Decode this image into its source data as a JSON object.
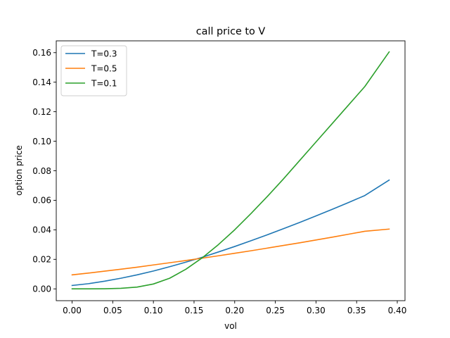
{
  "chart_data": {
    "type": "line",
    "title": "call price to V",
    "xlabel": "vol",
    "ylabel": "option price",
    "xlim": [
      -0.0195,
      0.4095
    ],
    "ylim": [
      -0.008,
      0.168
    ],
    "xticks": [
      0.0,
      0.05,
      0.1,
      0.15,
      0.2,
      0.25,
      0.3,
      0.35,
      0.4
    ],
    "xtick_labels": [
      "0.00",
      "0.05",
      "0.10",
      "0.15",
      "0.20",
      "0.25",
      "0.30",
      "0.35",
      "0.40"
    ],
    "yticks": [
      0.0,
      0.02,
      0.04,
      0.06,
      0.08,
      0.1,
      0.12,
      0.14,
      0.16
    ],
    "ytick_labels": [
      "0.00",
      "0.02",
      "0.04",
      "0.06",
      "0.08",
      "0.10",
      "0.12",
      "0.14",
      "0.16"
    ],
    "grid": false,
    "legend_position": "top-left",
    "x": [
      0.0,
      0.02,
      0.04,
      0.06,
      0.08,
      0.1,
      0.12,
      0.14,
      0.16,
      0.18,
      0.2,
      0.22,
      0.24,
      0.26,
      0.28,
      0.3,
      0.32,
      0.34,
      0.36,
      0.39
    ],
    "series": [
      {
        "name": "T=0.3",
        "color": "#1f77b4",
        "values": [
          0.0023,
          0.0035,
          0.0052,
          0.0072,
          0.0095,
          0.0121,
          0.015,
          0.0181,
          0.0214,
          0.025,
          0.0287,
          0.0326,
          0.0366,
          0.0408,
          0.045,
          0.0494,
          0.0539,
          0.0585,
          0.0632,
          0.0737
        ]
      },
      {
        "name": "T=0.5",
        "color": "#ff7f0e",
        "values": [
          0.0095,
          0.0107,
          0.012,
          0.0133,
          0.0147,
          0.0162,
          0.0177,
          0.0192,
          0.0208,
          0.0224,
          0.0241,
          0.0258,
          0.0276,
          0.0294,
          0.0312,
          0.0331,
          0.035,
          0.037,
          0.039,
          0.0405
        ]
      },
      {
        "name": "T=0.1",
        "color": "#2ca02c",
        "values": [
          0.0,
          0.0,
          0.0001,
          0.0004,
          0.0012,
          0.0033,
          0.0072,
          0.0133,
          0.021,
          0.03,
          0.04,
          0.051,
          0.0625,
          0.0745,
          0.087,
          0.0995,
          0.112,
          0.1245,
          0.137,
          0.1605
        ]
      }
    ]
  }
}
